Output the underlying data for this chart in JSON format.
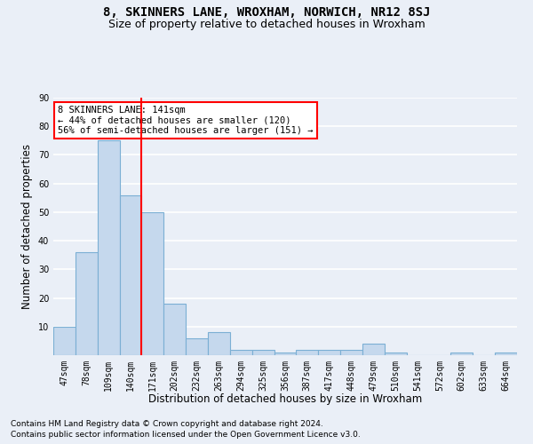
{
  "title": "8, SKINNERS LANE, WROXHAM, NORWICH, NR12 8SJ",
  "subtitle": "Size of property relative to detached houses in Wroxham",
  "xlabel": "Distribution of detached houses by size in Wroxham",
  "ylabel": "Number of detached properties",
  "footer_line1": "Contains HM Land Registry data © Crown copyright and database right 2024.",
  "footer_line2": "Contains public sector information licensed under the Open Government Licence v3.0.",
  "categories": [
    "47sqm",
    "78sqm",
    "109sqm",
    "140sqm",
    "171sqm",
    "202sqm",
    "232sqm",
    "263sqm",
    "294sqm",
    "325sqm",
    "356sqm",
    "387sqm",
    "417sqm",
    "448sqm",
    "479sqm",
    "510sqm",
    "541sqm",
    "572sqm",
    "602sqm",
    "633sqm",
    "664sqm"
  ],
  "values": [
    10,
    36,
    75,
    56,
    50,
    18,
    6,
    8,
    2,
    2,
    1,
    2,
    2,
    2,
    4,
    1,
    0,
    0,
    1,
    0,
    1
  ],
  "bar_color": "#c5d8ed",
  "bar_edge_color": "#7bafd4",
  "annotation_line1": "8 SKINNERS LANE: 141sqm",
  "annotation_line2": "← 44% of detached houses are smaller (120)",
  "annotation_line3": "56% of semi-detached houses are larger (151) →",
  "annotation_box_color": "white",
  "annotation_box_edge_color": "red",
  "vline_x": 3.5,
  "vline_color": "red",
  "ylim": [
    0,
    90
  ],
  "yticks": [
    0,
    10,
    20,
    30,
    40,
    50,
    60,
    70,
    80,
    90
  ],
  "background_color": "#eaeff7",
  "grid_color": "white",
  "title_fontsize": 10,
  "subtitle_fontsize": 9,
  "axis_label_fontsize": 8.5,
  "tick_fontsize": 7,
  "footer_fontsize": 6.5
}
